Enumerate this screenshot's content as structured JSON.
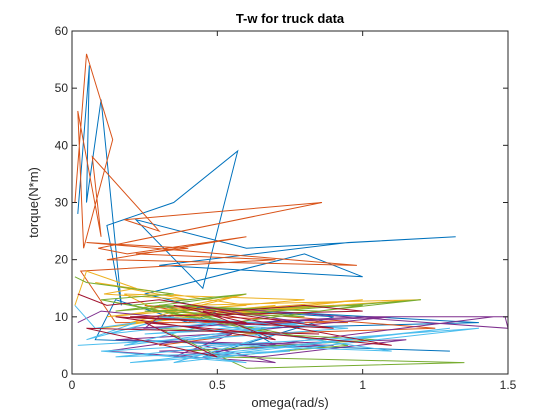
{
  "chart_data": {
    "type": "line",
    "title": "T-w for truck data",
    "xlabel": "omega(rad/s)",
    "ylabel": "torque(N*m)",
    "xlim": [
      0,
      1.5
    ],
    "ylim": [
      0,
      60
    ],
    "xticks": [
      "0",
      "0.5",
      "1",
      "1.5"
    ],
    "yticks": [
      "0",
      "10",
      "20",
      "30",
      "40",
      "50",
      "60"
    ],
    "grid": false,
    "legend": "none",
    "colors": [
      "#0072BD",
      "#D95319",
      "#EDB120",
      "#7E2F8E",
      "#77AC30",
      "#4DBEEE",
      "#A2142F"
    ],
    "series": [
      {
        "color": "#0072BD",
        "x": [
          0.02,
          0.06,
          0.05,
          0.1,
          0.17,
          0.12,
          0.35,
          0.57,
          0.45,
          0.22,
          0.6,
          1.32,
          0.95,
          0.3,
          1.0,
          0.8,
          0.25,
          0.5,
          0.4,
          0.15,
          0.08,
          1.3,
          0.7,
          0.6,
          1.4,
          0.3,
          0.9,
          0.45
        ],
        "y": [
          28,
          54,
          30,
          48,
          12,
          26,
          30,
          39,
          15,
          27,
          22,
          24,
          23,
          19,
          17,
          21,
          14,
          11,
          9,
          13,
          6,
          4,
          5,
          8,
          9,
          12,
          10,
          3
        ]
      },
      {
        "color": "#D95319",
        "x": [
          0.01,
          0.05,
          0.14,
          0.04,
          0.02,
          0.1,
          0.07,
          0.3,
          0.18,
          0.86,
          0.09,
          0.19,
          0.6,
          0.12,
          0.98,
          0.05,
          0.4,
          0.22,
          0.7,
          0.03,
          0.15,
          0.95,
          0.5,
          0.25,
          1.25,
          0.6,
          0.3
        ],
        "y": [
          30,
          56,
          41,
          22,
          46,
          24,
          38,
          25,
          27,
          30,
          22,
          21,
          24,
          20,
          19,
          23,
          22,
          21,
          20,
          18,
          9,
          9,
          10,
          12,
          8,
          7,
          5
        ]
      },
      {
        "color": "#EDB120",
        "x": [
          0.01,
          0.05,
          0.22,
          0.11,
          0.4,
          0.08,
          0.6,
          0.3,
          0.18,
          0.8,
          0.12,
          0.45,
          0.25,
          1.0,
          0.5,
          0.1,
          0.7,
          0.3,
          1.2,
          0.4,
          0.6,
          0.2,
          0.9,
          0.35
        ],
        "y": [
          12,
          18,
          15,
          14,
          13,
          16,
          12,
          11,
          14,
          13,
          10,
          12,
          9,
          13,
          11,
          8,
          12,
          10,
          13,
          12,
          14,
          9,
          12,
          11
        ]
      },
      {
        "color": "#7E2F8E",
        "x": [
          0.02,
          0.1,
          0.3,
          0.25,
          0.6,
          1.0,
          1.5,
          1.49,
          1.51,
          0.4,
          0.8,
          0.2,
          1.1,
          0.5,
          0.15,
          0.9,
          0.3,
          0.65,
          1.15,
          0.45,
          0.7,
          0.12,
          0.55,
          0.35,
          1.45
        ],
        "y": [
          9,
          11,
          10,
          8,
          9,
          10,
          10,
          10,
          8,
          12,
          9,
          8,
          10,
          7,
          6,
          5,
          4,
          3,
          6,
          5,
          2,
          4,
          7,
          3,
          10
        ]
      },
      {
        "color": "#77AC30",
        "x": [
          0.01,
          0.05,
          0.35,
          0.1,
          0.2,
          0.6,
          0.15,
          0.4,
          0.8,
          0.25,
          1.0,
          0.55,
          0.3,
          0.85,
          1.2,
          0.45,
          0.7,
          0.1,
          0.95,
          0.5,
          1.35,
          0.6,
          0.3,
          1.05,
          0.4
        ],
        "y": [
          17,
          16,
          14,
          13,
          12,
          14,
          11,
          12,
          10,
          11,
          12,
          9,
          12,
          11,
          13,
          10,
          7,
          13,
          5,
          3,
          2,
          1,
          8,
          6,
          4
        ]
      },
      {
        "color": "#4DBEEE",
        "x": [
          0.01,
          0.08,
          0.22,
          0.05,
          0.35,
          0.12,
          0.5,
          0.18,
          0.65,
          0.25,
          0.8,
          0.4,
          0.95,
          0.3,
          1.1,
          0.55,
          0.15,
          0.75,
          0.2,
          1.3,
          0.45,
          0.6,
          0.1,
          0.85,
          1.4,
          0.35,
          0.7,
          0.02
        ],
        "y": [
          12,
          8,
          9,
          6,
          10,
          7,
          9,
          5,
          8,
          7,
          9,
          6,
          8,
          10,
          4,
          5,
          3,
          4,
          2,
          8,
          3,
          2,
          4,
          6,
          8,
          2,
          7,
          5
        ]
      },
      {
        "color": "#A2142F",
        "x": [
          0.02,
          0.12,
          0.3,
          0.55,
          0.8,
          1.0,
          0.2,
          0.6,
          0.35,
          0.9,
          0.15,
          0.7,
          0.45,
          1.1,
          0.25,
          0.5,
          0.05,
          0.85
        ],
        "y": [
          14,
          12,
          13,
          11,
          12,
          11,
          10,
          9,
          12,
          8,
          10,
          6,
          11,
          5,
          9,
          3,
          8,
          7
        ]
      }
    ]
  }
}
